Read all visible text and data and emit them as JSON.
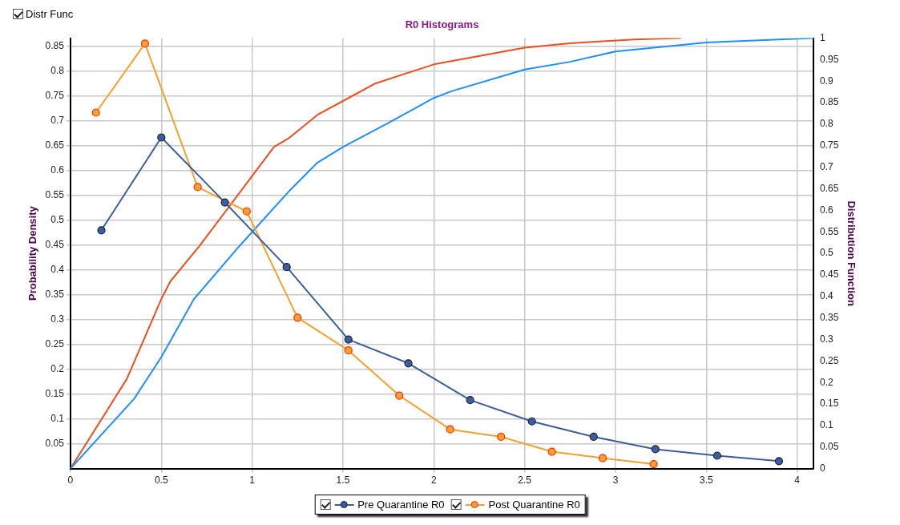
{
  "chart_data": {
    "type": "line",
    "title": "R0 Histograms",
    "ylabel": "Probability Density",
    "y2label": "Distribution Function",
    "annotations": [
      "Distr Func"
    ],
    "xlim": [
      0,
      4.09
    ],
    "xticks": [
      0,
      0.5,
      1,
      1.5,
      2,
      2.5,
      3,
      3.5,
      4
    ],
    "ylim": [
      0,
      0.867
    ],
    "yticks": [
      0.05,
      0.1,
      0.15,
      0.2,
      0.25,
      0.3,
      0.35,
      0.4,
      0.45,
      0.5,
      0.55,
      0.6,
      0.65,
      0.7,
      0.75,
      0.8,
      0.85
    ],
    "y2lim": [
      0,
      1
    ],
    "y2ticks": [
      0,
      0.05,
      0.1,
      0.15,
      0.2,
      0.25,
      0.3,
      0.35,
      0.4,
      0.45,
      0.5,
      0.55,
      0.6,
      0.65,
      0.7,
      0.75,
      0.8,
      0.85,
      0.9,
      0.95,
      1
    ],
    "grid": true,
    "legend": "bottom",
    "series": [
      {
        "name": "Pre Quarantine R0",
        "color": "#3b5e9e",
        "marker": "circle",
        "x": [
          0.17,
          0.5,
          0.85,
          1.19,
          1.53,
          1.86,
          2.2,
          2.54,
          2.88,
          3.22,
          3.56,
          3.9
        ],
        "values": [
          0.48,
          0.667,
          0.536,
          0.406,
          0.26,
          0.212,
          0.138,
          0.095,
          0.064,
          0.039,
          0.026,
          0.015
        ]
      },
      {
        "name": "Post Quarantine R0",
        "color": "#f5a030",
        "marker": "circle",
        "x": [
          0.14,
          0.41,
          0.7,
          0.97,
          1.25,
          1.53,
          1.81,
          2.09,
          2.37,
          2.65,
          2.93,
          3.21
        ],
        "values": [
          0.717,
          0.856,
          0.567,
          0.518,
          0.304,
          0.238,
          0.147,
          0.079,
          0.064,
          0.034,
          0.021,
          0.009
        ]
      },
      {
        "color": "#1e8fff",
        "marker": "none",
        "axis": "y2",
        "x": [
          0,
          0.35,
          0.5,
          0.68,
          0.93,
          1.2,
          1.36,
          1.5,
          1.75,
          2,
          2.1,
          2.5,
          2.75,
          3,
          3.5,
          3.9,
          4.09
        ],
        "values": [
          0,
          0.162,
          0.259,
          0.394,
          0.517,
          0.643,
          0.711,
          0.747,
          0.803,
          0.861,
          0.877,
          0.927,
          0.945,
          0.969,
          0.99,
          0.997,
          1
        ]
      },
      {
        "color": "#f04e1e",
        "marker": "none",
        "axis": "y2",
        "x": [
          0,
          0.31,
          0.5,
          0.55,
          0.71,
          1.12,
          1.2,
          1.36,
          1.5,
          1.68,
          2,
          2.5,
          2.75,
          3.1,
          3.36
        ],
        "values": [
          0,
          0.208,
          0.394,
          0.435,
          0.517,
          0.747,
          0.767,
          0.822,
          0.854,
          0.895,
          0.939,
          0.978,
          0.988,
          0.997,
          1
        ]
      }
    ]
  }
}
